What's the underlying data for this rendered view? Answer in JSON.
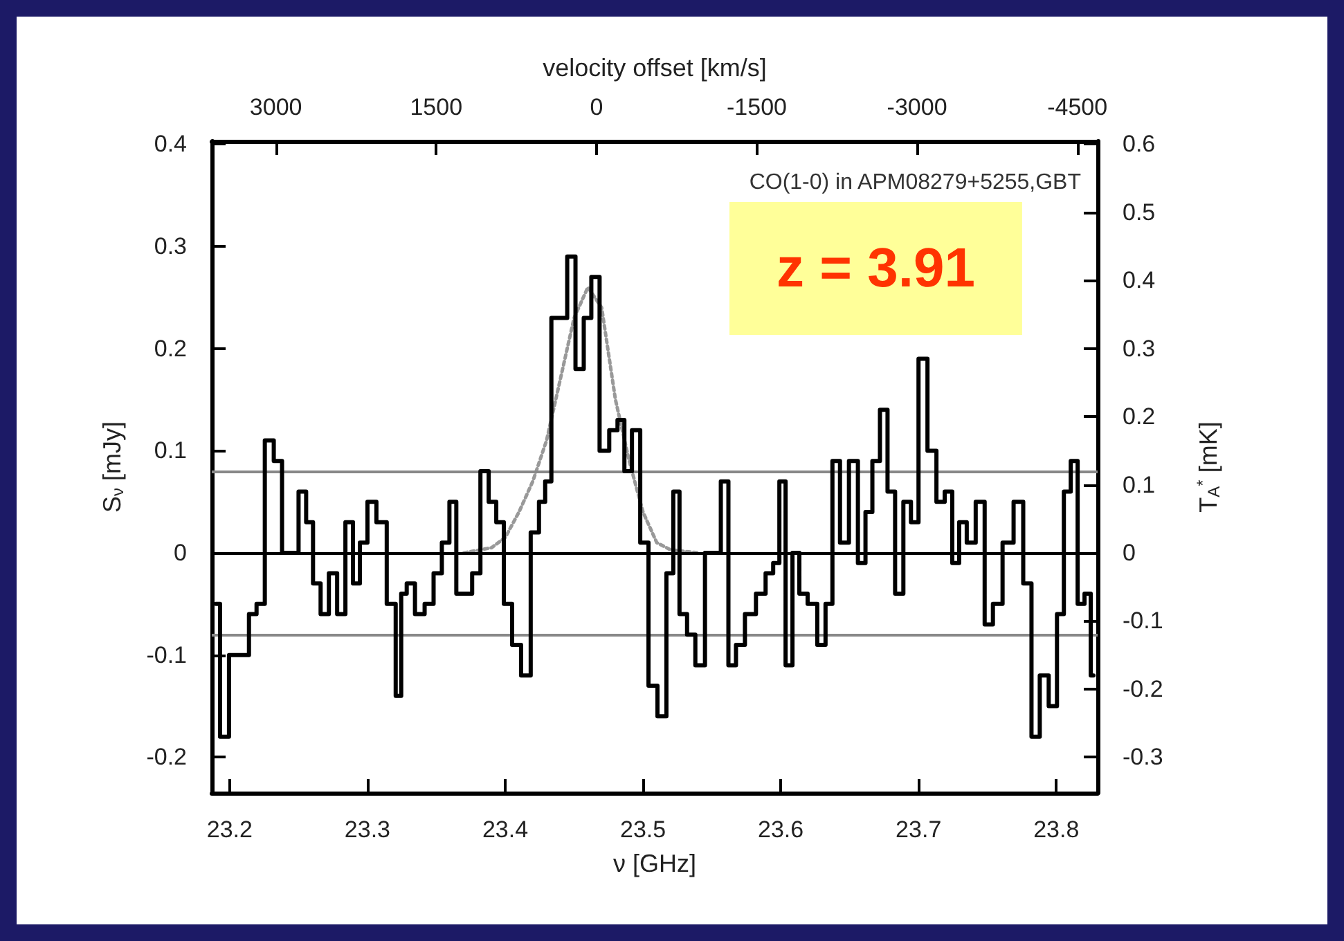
{
  "chart_data": {
    "type": "step",
    "x2label": "velocity offset [km/s]",
    "xlabel": "ν [GHz]",
    "ylabel": "S$_{ν}$ [mJy]",
    "y2label": "T$_{A}$$^{*}$ [mK]",
    "annotations": [
      "CO(1-0) in APM08279+5255,GBT",
      "z = 3.91"
    ],
    "xlim": [
      23.187,
      23.83
    ],
    "xticks": [
      23.2,
      23.3,
      23.4,
      23.5,
      23.6,
      23.7,
      23.8
    ],
    "x2lim": [
      3600,
      -4690
    ],
    "x2ticks": [
      3000,
      1500,
      0,
      -1500,
      -3000,
      -4500
    ],
    "ylim": [
      -0.235,
      0.403
    ],
    "yticks": [
      -0.2,
      -0.1,
      0,
      0.1,
      0.2,
      0.3,
      0.4
    ],
    "y2lim": [
      -0.3525,
      0.6045
    ],
    "y2ticks": [
      -0.3,
      -0.2,
      -0.1,
      0,
      0.1,
      0.2,
      0.3,
      0.4,
      0.5,
      0.6
    ],
    "grid": false,
    "marker": "none",
    "ref_lines": [
      {
        "axis": "y",
        "value": 0.08,
        "color": "#888888"
      },
      {
        "axis": "y",
        "value": -0.08,
        "color": "#888888"
      },
      {
        "axis": "y",
        "value": 0,
        "color": "#000000"
      }
    ],
    "series": [
      {
        "color": "#000000",
        "line_style": "solid",
        "x": [
          23.19,
          23.196,
          23.203,
          23.211,
          23.217,
          23.222,
          23.229,
          23.235,
          23.241,
          23.247,
          23.253,
          23.258,
          23.263,
          23.269,
          23.275,
          23.281,
          23.287,
          23.292,
          23.297,
          23.303,
          23.31,
          23.318,
          23.323,
          23.326,
          23.331,
          23.338,
          23.345,
          23.351,
          23.357,
          23.362,
          23.367,
          23.373,
          23.379,
          23.385,
          23.391,
          23.396,
          23.402,
          23.408,
          23.415,
          23.422,
          23.427,
          23.431,
          23.436,
          23.442,
          23.448,
          23.454,
          23.46,
          23.465,
          23.472,
          23.479,
          23.484,
          23.489,
          23.495,
          23.501,
          23.507,
          23.514,
          23.52,
          23.524,
          23.529,
          23.535,
          23.541,
          23.549,
          23.554,
          23.559,
          23.565,
          23.57,
          23.578,
          23.586,
          23.592,
          23.597,
          23.601,
          23.606,
          23.611,
          23.616,
          23.623,
          23.63,
          23.635,
          23.64,
          23.646,
          23.653,
          23.659,
          23.664,
          23.669,
          23.675,
          23.68,
          23.686,
          23.692,
          23.697,
          23.703,
          23.71,
          23.716,
          23.722,
          23.727,
          23.732,
          23.738,
          23.745,
          23.751,
          23.757,
          23.765,
          23.773,
          23.779,
          23.785,
          23.791,
          23.798,
          23.803,
          23.808,
          23.813,
          23.818,
          23.823,
          23.827
        ],
        "values": [
          -0.05,
          -0.18,
          -0.1,
          -0.1,
          -0.06,
          -0.05,
          0.11,
          0.09,
          0.0,
          0.0,
          0.06,
          0.03,
          -0.03,
          -0.06,
          -0.02,
          -0.06,
          0.03,
          -0.03,
          0.01,
          0.05,
          0.03,
          -0.05,
          -0.14,
          -0.04,
          -0.03,
          -0.06,
          -0.05,
          -0.02,
          0.01,
          0.05,
          -0.04,
          -0.04,
          -0.02,
          0.08,
          0.05,
          0.03,
          -0.05,
          -0.09,
          -0.12,
          0.02,
          0.05,
          0.07,
          0.23,
          0.23,
          0.29,
          0.18,
          0.23,
          0.27,
          0.1,
          0.12,
          0.13,
          0.08,
          0.12,
          0.01,
          -0.13,
          -0.16,
          -0.02,
          0.06,
          -0.06,
          -0.08,
          -0.11,
          0.0,
          0.0,
          0.07,
          -0.11,
          -0.09,
          -0.06,
          -0.04,
          -0.02,
          -0.01,
          0.07,
          -0.11,
          0.0,
          -0.04,
          -0.05,
          -0.09,
          -0.05,
          0.09,
          0.01,
          0.09,
          -0.01,
          0.04,
          0.09,
          0.14,
          0.06,
          -0.04,
          0.05,
          0.03,
          0.19,
          0.1,
          0.05,
          0.06,
          -0.01,
          0.03,
          0.01,
          0.05,
          -0.07,
          -0.05,
          0.01,
          0.05,
          -0.03,
          -0.18,
          -0.12,
          -0.15,
          -0.06,
          0.06,
          0.09,
          -0.05,
          -0.04,
          -0.12
        ]
      },
      {
        "type": "line",
        "color": "#999999",
        "line_style": "dotted",
        "x": [
          23.37,
          23.39,
          23.4,
          23.41,
          23.42,
          23.43,
          23.44,
          23.45,
          23.46,
          23.47,
          23.48,
          23.49,
          23.5,
          23.51,
          23.52,
          23.54
        ],
        "values": [
          0,
          0.005,
          0.015,
          0.04,
          0.07,
          0.11,
          0.17,
          0.23,
          0.26,
          0.24,
          0.15,
          0.09,
          0.04,
          0.01,
          0.003,
          0
        ]
      }
    ]
  }
}
